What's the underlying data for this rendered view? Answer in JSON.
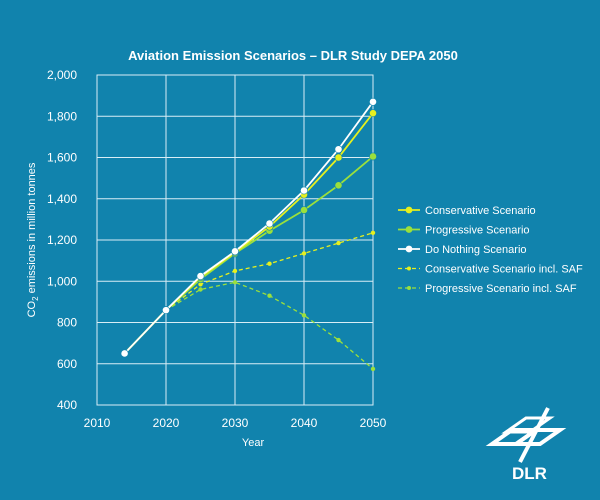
{
  "chart_data": {
    "type": "line",
    "title": "Aviation Emission Scenarios – DLR Study DEPA 2050",
    "xlabel": "Year",
    "ylabel_main": "CO",
    "ylabel_sub": "2",
    "ylabel_rest": " emissions in million tonnes",
    "xlim": [
      2010,
      2050
    ],
    "ylim": [
      400,
      2000
    ],
    "x_ticks": [
      2010,
      2020,
      2030,
      2040,
      2050
    ],
    "x_tick_labels": [
      "2010",
      "2020",
      "2030",
      "2040",
      "2050"
    ],
    "y_ticks": [
      400,
      600,
      800,
      1000,
      1200,
      1400,
      1600,
      1800,
      2000
    ],
    "y_tick_labels": [
      "400",
      "600",
      "800",
      "1,000",
      "1,200",
      "1,400",
      "1,600",
      "1,800",
      "2,000"
    ],
    "grid": true,
    "legend_position": "right",
    "series": [
      {
        "name": "Conservative Scenario",
        "color": "#e6f01e",
        "style": "solid",
        "marker": "large",
        "x": [
          2014,
          2020,
          2025,
          2030,
          2035,
          2040,
          2045,
          2050
        ],
        "y": [
          650,
          860,
          1020,
          1140,
          1265,
          1420,
          1600,
          1815
        ]
      },
      {
        "name": "Progressive Scenario",
        "color": "#9be03c",
        "style": "solid",
        "marker": "large",
        "x": [
          2014,
          2020,
          2025,
          2030,
          2035,
          2040,
          2045,
          2050
        ],
        "y": [
          650,
          860,
          1010,
          1135,
          1245,
          1345,
          1465,
          1605
        ]
      },
      {
        "name": "Do Nothing Scenario",
        "color": "#ffffff",
        "style": "solid",
        "marker": "large",
        "x": [
          2014,
          2020,
          2025,
          2030,
          2035,
          2040,
          2045,
          2050
        ],
        "y": [
          650,
          860,
          1025,
          1145,
          1280,
          1440,
          1640,
          1870
        ]
      },
      {
        "name": "Conservative Scenario incl. SAF",
        "color": "#e6f01e",
        "style": "dashed",
        "marker": "small",
        "x": [
          2020,
          2025,
          2030,
          2035,
          2040,
          2045,
          2050
        ],
        "y": [
          860,
          985,
          1050,
          1085,
          1135,
          1185,
          1235
        ]
      },
      {
        "name": "Progressive Scenario incl. SAF",
        "color": "#9be03c",
        "style": "dashed",
        "marker": "small",
        "x": [
          2020,
          2025,
          2030,
          2035,
          2040,
          2045,
          2050
        ],
        "y": [
          860,
          960,
          995,
          930,
          835,
          715,
          575
        ]
      }
    ]
  },
  "logo": {
    "text": "DLR",
    "icon": "dlr-logo-icon",
    "color": "#ffffff"
  },
  "colors": {
    "background": "#1183ad",
    "grid": "#d9eef6"
  }
}
